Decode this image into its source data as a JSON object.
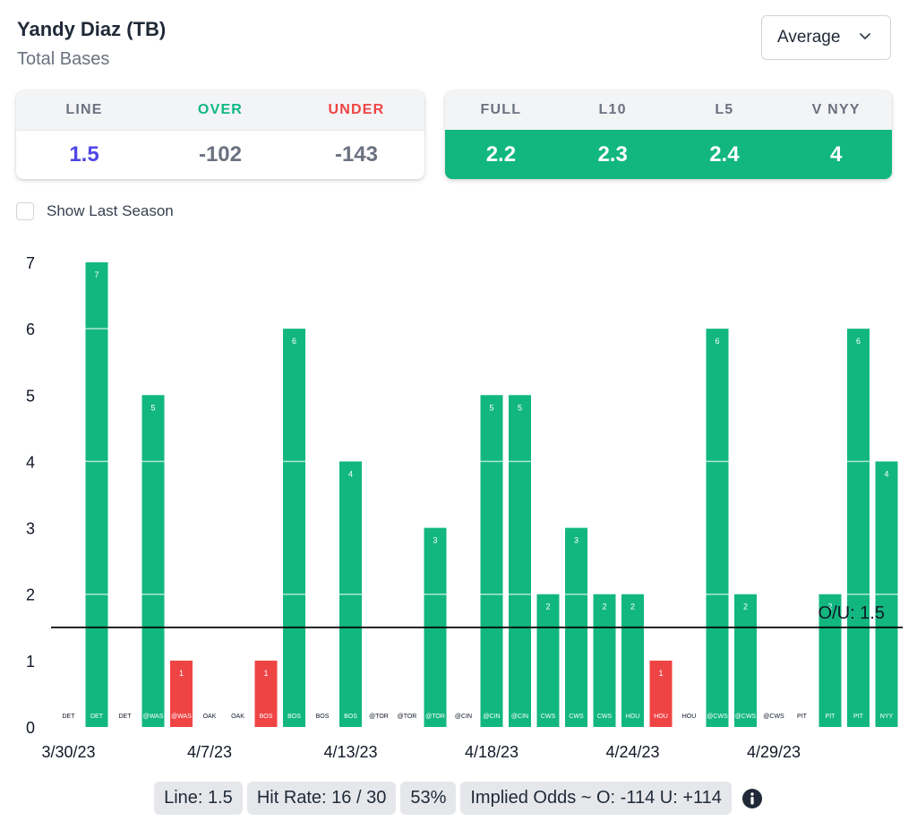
{
  "header": {
    "player": "Yandy Diaz (TB)",
    "prop": "Total Bases",
    "dropdown_value": "Average"
  },
  "line_card": {
    "line_label": "LINE",
    "line_value": "1.5",
    "over_label": "OVER",
    "over_value": "-102",
    "under_label": "UNDER",
    "under_value": "-143"
  },
  "avg_card": {
    "full_label": "FULL",
    "full_value": "2.2",
    "l10_label": "L10",
    "l10_value": "2.3",
    "l5_label": "L5",
    "l5_value": "2.4",
    "vs_label": "V NYY",
    "vs_value": "4"
  },
  "toggle_label": "Show Last Season",
  "colors": {
    "hit": "#12b77f",
    "miss": "#ef4444",
    "line": "#000000"
  },
  "chart_data": {
    "type": "bar",
    "ylim": [
      0,
      7
    ],
    "yticks": [
      0,
      1,
      2,
      3,
      4,
      5,
      6,
      7
    ],
    "line_value": 1.5,
    "line_label": "O/U: 1.5",
    "categories": [
      "DET",
      "DET",
      "DET",
      "@WAS",
      "@WAS",
      "OAK",
      "OAK",
      "BOS",
      "BOS",
      "BOS",
      "BOS",
      "@TOR",
      "@TOR",
      "@TOR",
      "@CIN",
      "@CIN",
      "@CIN",
      "CWS",
      "CWS",
      "CWS",
      "HOU",
      "HOU",
      "HOU",
      "@CWS",
      "@CWS",
      "@CWS",
      "PIT",
      "PIT",
      "PIT",
      "NYY"
    ],
    "values": [
      0,
      7,
      0,
      5,
      1,
      0,
      0,
      1,
      6,
      0,
      4,
      0,
      0,
      3,
      0,
      5,
      5,
      2,
      3,
      2,
      2,
      1,
      0,
      6,
      2,
      0,
      0,
      2,
      6,
      4
    ],
    "date_labels": [
      {
        "index": 0,
        "text": "3/30/23"
      },
      {
        "index": 5,
        "text": "4/7/23"
      },
      {
        "index": 10,
        "text": "4/13/23"
      },
      {
        "index": 15,
        "text": "4/18/23"
      },
      {
        "index": 20,
        "text": "4/24/23"
      },
      {
        "index": 25,
        "text": "4/29/23"
      }
    ]
  },
  "footer": {
    "line": "Line: 1.5",
    "hit_rate": "Hit Rate: 16 / 30",
    "pct": "53%",
    "implied": "Implied Odds ~ O: -114 U: +114"
  }
}
